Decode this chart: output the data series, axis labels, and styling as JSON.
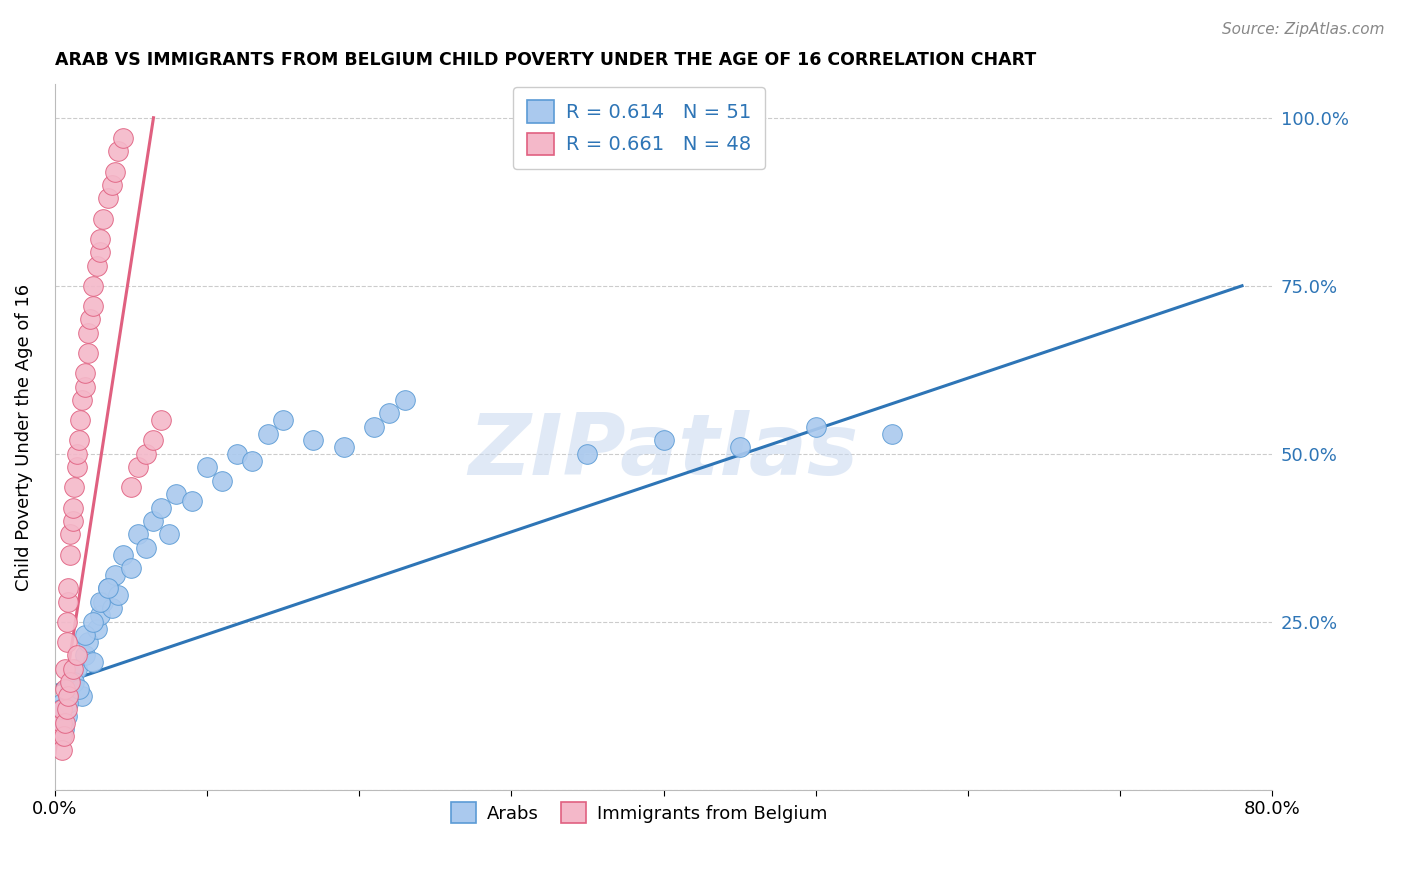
{
  "title": "ARAB VS IMMIGRANTS FROM BELGIUM CHILD POVERTY UNDER THE AGE OF 16 CORRELATION CHART",
  "source": "Source: ZipAtlas.com",
  "ylabel": "Child Poverty Under the Age of 16",
  "xlim": [
    0.0,
    0.8
  ],
  "ylim": [
    0.0,
    1.05
  ],
  "arab_R": 0.614,
  "arab_N": 51,
  "immig_R": 0.661,
  "immig_N": 48,
  "arab_color": "#aac9ee",
  "arab_edge_color": "#5b9bd5",
  "arab_line_color": "#2e75b6",
  "immig_color": "#f4b8c9",
  "immig_edge_color": "#e06080",
  "immig_line_color": "#e06080",
  "watermark": "ZIPatlas",
  "legend_text_color": "#2e75b6",
  "right_tick_color": "#2e75b6",
  "arab_x": [
    0.005,
    0.008,
    0.01,
    0.012,
    0.015,
    0.018,
    0.02,
    0.022,
    0.025,
    0.028,
    0.03,
    0.032,
    0.035,
    0.038,
    0.04,
    0.042,
    0.045,
    0.05,
    0.055,
    0.06,
    0.065,
    0.07,
    0.075,
    0.08,
    0.09,
    0.1,
    0.11,
    0.12,
    0.13,
    0.14,
    0.15,
    0.17,
    0.19,
    0.21,
    0.23,
    0.35,
    0.4,
    0.45,
    0.5,
    0.55,
    0.002,
    0.004,
    0.006,
    0.009,
    0.013,
    0.016,
    0.02,
    0.025,
    0.03,
    0.035,
    0.22
  ],
  "arab_y": [
    0.13,
    0.11,
    0.15,
    0.17,
    0.18,
    0.14,
    0.2,
    0.22,
    0.19,
    0.24,
    0.26,
    0.28,
    0.3,
    0.27,
    0.32,
    0.29,
    0.35,
    0.33,
    0.38,
    0.36,
    0.4,
    0.42,
    0.38,
    0.44,
    0.43,
    0.48,
    0.46,
    0.5,
    0.49,
    0.53,
    0.55,
    0.52,
    0.51,
    0.54,
    0.58,
    0.5,
    0.52,
    0.51,
    0.54,
    0.53,
    0.1,
    0.12,
    0.09,
    0.13,
    0.16,
    0.15,
    0.23,
    0.25,
    0.28,
    0.3,
    0.56
  ],
  "immig_x": [
    0.005,
    0.005,
    0.005,
    0.007,
    0.007,
    0.008,
    0.008,
    0.009,
    0.009,
    0.01,
    0.01,
    0.012,
    0.012,
    0.013,
    0.015,
    0.015,
    0.016,
    0.017,
    0.018,
    0.02,
    0.02,
    0.022,
    0.022,
    0.023,
    0.025,
    0.025,
    0.028,
    0.03,
    0.03,
    0.032,
    0.035,
    0.038,
    0.04,
    0.042,
    0.045,
    0.05,
    0.055,
    0.06,
    0.065,
    0.07,
    0.005,
    0.006,
    0.007,
    0.008,
    0.009,
    0.01,
    0.012,
    0.015
  ],
  "immig_y": [
    0.08,
    0.1,
    0.12,
    0.15,
    0.18,
    0.22,
    0.25,
    0.28,
    0.3,
    0.35,
    0.38,
    0.4,
    0.42,
    0.45,
    0.48,
    0.5,
    0.52,
    0.55,
    0.58,
    0.6,
    0.62,
    0.65,
    0.68,
    0.7,
    0.72,
    0.75,
    0.78,
    0.8,
    0.82,
    0.85,
    0.88,
    0.9,
    0.92,
    0.95,
    0.97,
    0.45,
    0.48,
    0.5,
    0.52,
    0.55,
    0.06,
    0.08,
    0.1,
    0.12,
    0.14,
    0.16,
    0.18,
    0.2
  ],
  "arab_line_x0": 0.0,
  "arab_line_x1": 0.78,
  "arab_line_y0": 0.155,
  "arab_line_y1": 0.75,
  "immig_line_x0": 0.0,
  "immig_line_x1": 0.065,
  "immig_line_y0": 0.05,
  "immig_line_y1": 1.0
}
